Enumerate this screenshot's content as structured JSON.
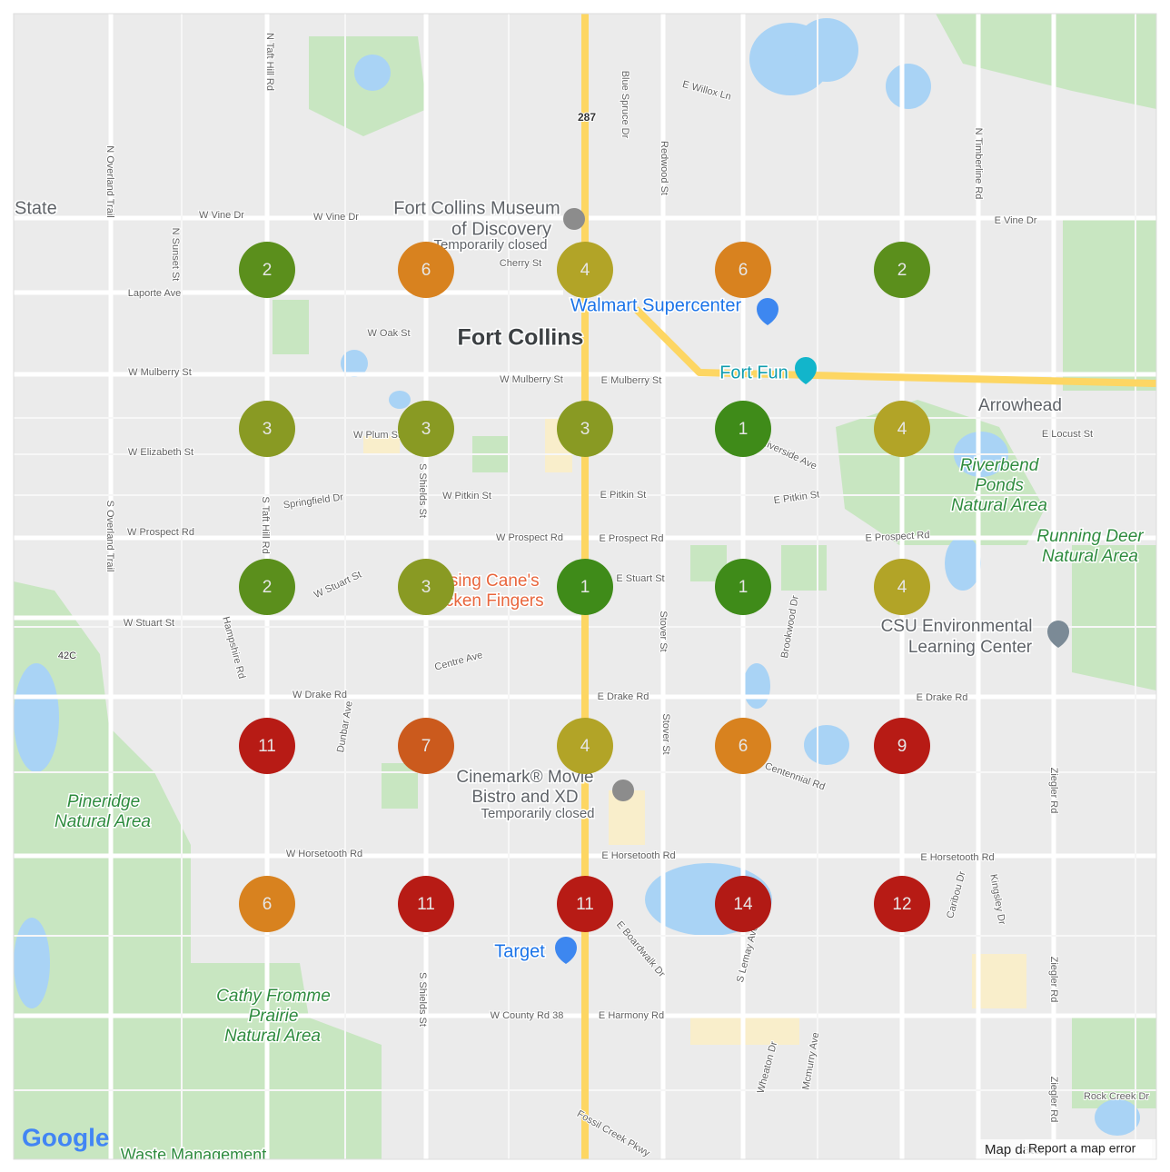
{
  "grid": {
    "rows": [
      [
        2,
        6,
        4,
        6,
        2
      ],
      [
        3,
        3,
        3,
        1,
        4
      ],
      [
        2,
        3,
        1,
        1,
        4
      ],
      [
        11,
        7,
        4,
        6,
        9
      ],
      [
        6,
        11,
        11,
        14,
        12
      ]
    ],
    "colors": [
      [
        "#5b8f1c",
        "#d8821f",
        "#b2a427",
        "#d8821f",
        "#5b8f1c"
      ],
      [
        "#899a23",
        "#899a23",
        "#899a23",
        "#3f8b19",
        "#b2a427"
      ],
      [
        "#5b8f1c",
        "#899a23",
        "#3f8b19",
        "#3f8b19",
        "#b2a427"
      ],
      [
        "#b71b15",
        "#cb5a1d",
        "#b2a427",
        "#d8821f",
        "#b71b15"
      ],
      [
        "#d8821f",
        "#b71b15",
        "#b71b15",
        "#b21a15",
        "#b71b15"
      ]
    ]
  },
  "labels": [
    "Fort Collins Museum",
    "of Discovery",
    "Temporarily closed",
    "Fort Collins",
    "Walmart Supercenter",
    "Fort Fun",
    "Arrowhead",
    "Riverbend",
    "Ponds",
    "Natural Area",
    "Running Deer",
    "Natural Area",
    "Raising Cane's",
    "Chicken Fingers",
    "CSU Environmental",
    "Learning Center",
    "Cinemark® Movie",
    "Bistro and XD",
    "Temporarily closed",
    "Pineridge",
    "Natural Area",
    "Target",
    "Cathy Fromme",
    "Prairie",
    "Natural Area",
    "Waste Management",
    "State",
    "W Vine Dr",
    "W Vine Dr",
    "E Vine Dr",
    "Laporte Ave",
    "W Oak St",
    "Cherry St",
    "W Mulberry St",
    "W Mulberry St",
    "E Mulberry St",
    "W Plum St",
    "W Elizabeth St",
    "Springfield Dr",
    "W Pitkin St",
    "E Pitkin St",
    "E Pitkin St",
    "W Prospect Rd",
    "W Prospect Rd",
    "E Prospect Rd",
    "E Prospect Rd",
    "W Stuart St",
    "E Stuart St",
    "W Stuart St",
    "Centre Ave",
    "W Drake Rd",
    "E Drake Rd",
    "E Drake Rd",
    "W Horsetooth Rd",
    "E Horsetooth Rd",
    "E Horsetooth Rd",
    "W County Rd 38",
    "E Harmony Rd",
    "Rock Creek Dr",
    "E Locust St",
    "E Willox Ln",
    "S Shields St",
    "S Taft Hill Rd",
    "N Taft Hill Rd",
    "N Sunset St",
    "N Overland Trail",
    "S Overland Trail",
    "Blue Spruce Dr",
    "Redwood St",
    "N Timberline Rd",
    "Stover St",
    "Brookwood Dr",
    "Hampshire Rd",
    "Dunbar Ave",
    "Stover St",
    "Ziegler Rd",
    "Ziegler Rd",
    "Ziegler Rd",
    "S Shields St",
    "S Lemay Ave",
    "Wheaton Dr",
    "Mcmurry Ave",
    "E Boardwalk Dr",
    "Fossil Creek Pkwy",
    "Caribou Dr",
    "Kingsley Dr",
    "Riverside Ave",
    "Centennial Rd",
    "287",
    "42C"
  ],
  "footer": {
    "logo": "Google",
    "map_data": "Map data",
    "report": "Report a map error"
  }
}
